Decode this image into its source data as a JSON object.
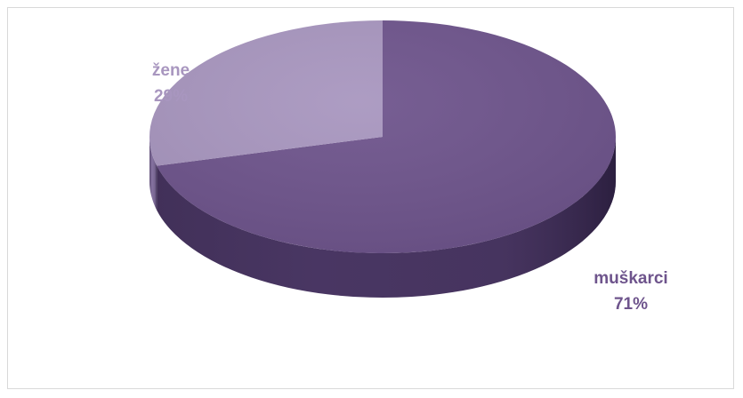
{
  "chart_data": {
    "type": "pie",
    "style": "3d",
    "title": "",
    "slices": [
      {
        "label": "muškarci",
        "value": 71,
        "value_label": "71%",
        "color": "#6e548c",
        "side_color": "#4a3764",
        "label_color": "#6e548c"
      },
      {
        "label": "žene",
        "value": 29,
        "value_label": "29%",
        "color": "#a896bf",
        "side_color": "#8a77a5",
        "label_color": "#a896bf"
      }
    ],
    "legend": "none"
  }
}
